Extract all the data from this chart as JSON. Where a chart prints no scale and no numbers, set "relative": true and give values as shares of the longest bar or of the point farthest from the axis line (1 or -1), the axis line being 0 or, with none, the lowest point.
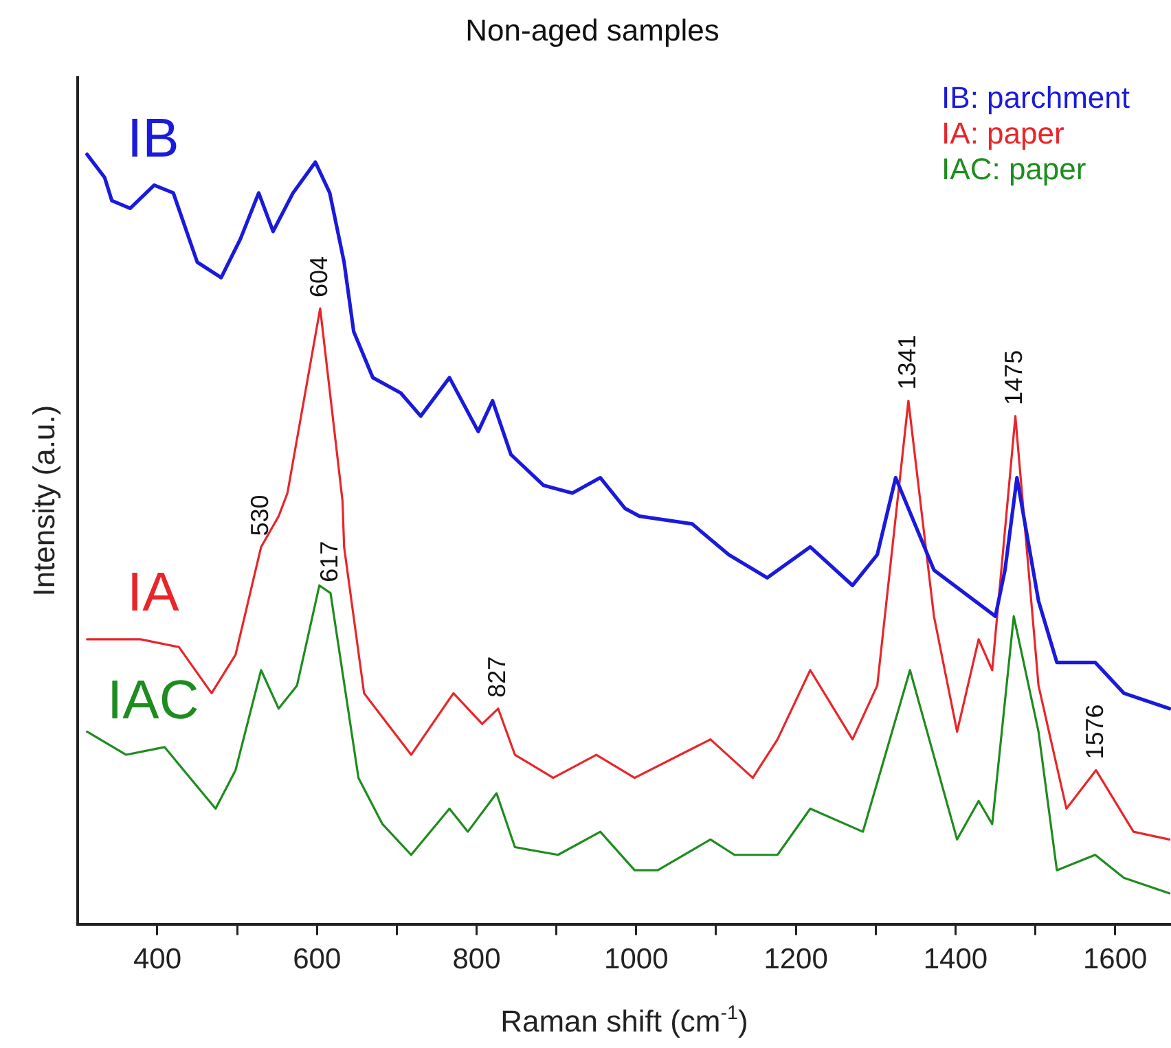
{
  "chart_data": {
    "type": "line",
    "title": "Non-aged samples",
    "xlabel": "Raman shift (cm$^{-1}$)",
    "ylabel": "Intensity (a.u.)",
    "relative": true,
    "grid": false,
    "marker": "none",
    "line_style": "solid",
    "legend": "top right",
    "xlim": [
      300,
      1670
    ],
    "xticks": [
      400,
      {
        "value": 500,
        "label": null
      },
      600,
      {
        "value": 700,
        "label": null
      },
      800,
      {
        "value": 900,
        "label": null
      },
      1000,
      {
        "value": 1100,
        "label": null
      },
      1200,
      {
        "value": 1300,
        "label": null
      },
      1400,
      {
        "value": 1500,
        "label": null
      },
      1600
    ],
    "series": [
      {
        "name": "IB: parchment",
        "color": "#1a1adc",
        "x": [
          312,
          334,
          343,
          366,
          396,
          420,
          450,
          480,
          504,
          527,
          545,
          570,
          598,
          616,
          634,
          646,
          670,
          705,
          730,
          766,
          802,
          820,
          843,
          884,
          920,
          955,
          986,
          1004,
          1070,
          1116,
          1164,
          1218,
          1271,
          1302,
          1325,
          1373,
          1450,
          1462,
          1477,
          1504,
          1527,
          1575,
          1611,
          1668
        ],
        "values": [
          1.0,
          0.97,
          0.94,
          0.93,
          0.96,
          0.95,
          0.86,
          0.84,
          0.89,
          0.95,
          0.9,
          0.95,
          0.99,
          0.95,
          0.86,
          0.77,
          0.71,
          0.69,
          0.66,
          0.71,
          0.64,
          0.68,
          0.61,
          0.57,
          0.56,
          0.58,
          0.54,
          0.53,
          0.52,
          0.48,
          0.45,
          0.49,
          0.44,
          0.48,
          0.58,
          0.46,
          0.4,
          0.46,
          0.58,
          0.42,
          0.34,
          0.34,
          0.3,
          0.28
        ]
      },
      {
        "name": "IA: paper",
        "color": "#e8262a",
        "x": [
          312,
          379,
          427,
          468,
          498,
          530,
          552,
          563,
          604,
          632,
          634,
          659,
          718,
          771,
          807,
          827,
          848,
          896,
          950,
          998,
          1093,
          1146,
          1177,
          1218,
          1271,
          1302,
          1341,
          1373,
          1402,
          1429,
          1446,
          1475,
          1504,
          1539,
          1576,
          1623,
          1668
        ],
        "values": [
          0.37,
          0.37,
          0.36,
          0.3,
          0.35,
          0.49,
          0.53,
          0.56,
          0.8,
          0.55,
          0.49,
          0.3,
          0.22,
          0.3,
          0.26,
          0.28,
          0.22,
          0.19,
          0.22,
          0.19,
          0.24,
          0.19,
          0.24,
          0.33,
          0.24,
          0.31,
          0.68,
          0.4,
          0.25,
          0.37,
          0.33,
          0.66,
          0.31,
          0.15,
          0.2,
          0.12,
          0.11
        ]
      },
      {
        "name": "IAC: paper",
        "color": "#1e8c1e",
        "x": [
          312,
          361,
          409,
          473,
          498,
          530,
          552,
          575,
          603,
          617,
          652,
          682,
          718,
          766,
          789,
          825,
          848,
          902,
          955,
          998,
          1027,
          1093,
          1123,
          1177,
          1218,
          1284,
          1343,
          1402,
          1429,
          1446,
          1473,
          1504,
          1527,
          1575,
          1611,
          1668
        ],
        "values": [
          0.25,
          0.22,
          0.23,
          0.15,
          0.2,
          0.33,
          0.28,
          0.31,
          0.44,
          0.43,
          0.19,
          0.13,
          0.09,
          0.15,
          0.12,
          0.17,
          0.1,
          0.09,
          0.12,
          0.07,
          0.07,
          0.11,
          0.09,
          0.09,
          0.15,
          0.12,
          0.33,
          0.11,
          0.16,
          0.13,
          0.4,
          0.25,
          0.07,
          0.09,
          0.06,
          0.04
        ]
      }
    ],
    "annotations": [
      "IB",
      "IA",
      "IAC",
      {
        "text": "530",
        "x": 530,
        "y": 0.49
      },
      {
        "text": "604",
        "x": 604,
        "y": 0.8
      },
      {
        "text": "617",
        "x": 617,
        "y": 0.43
      },
      {
        "text": "827",
        "x": 827,
        "y": 0.28
      },
      {
        "text": "1341",
        "x": 1341,
        "y": 0.68
      },
      {
        "text": "1475",
        "x": 1475,
        "y": 0.66
      },
      {
        "text": "1576",
        "x": 1576,
        "y": 0.2
      }
    ]
  }
}
